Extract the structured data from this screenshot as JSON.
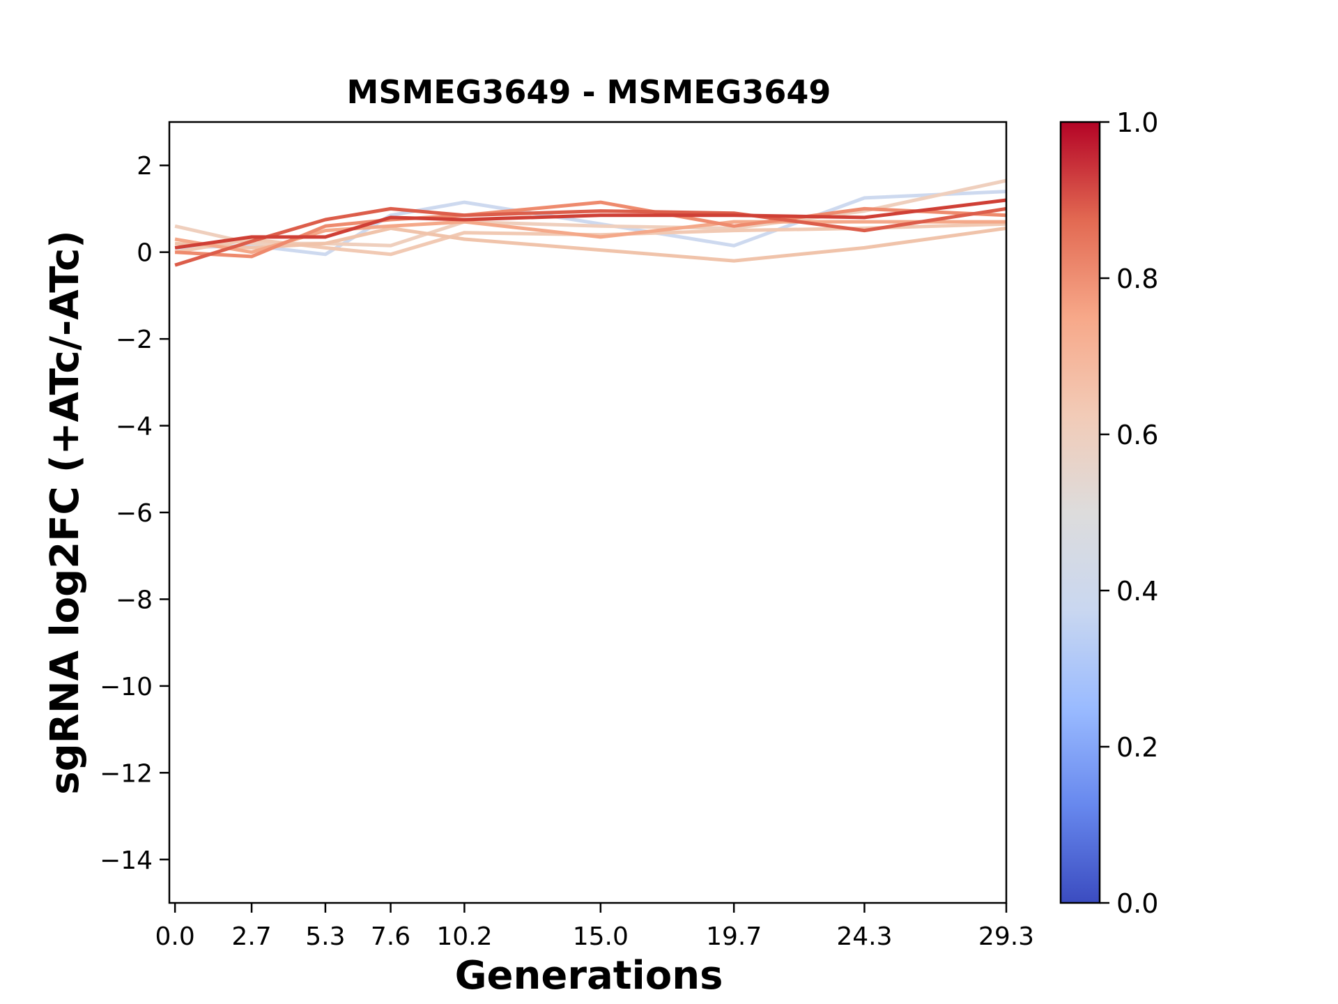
{
  "chart_data": {
    "type": "line",
    "title": "MSMEG3649 - MSMEG3649",
    "xlabel": "Generations",
    "ylabel": "sgRNA log2FC (+ATc/-ATc)",
    "x": [
      0.0,
      2.7,
      5.3,
      7.6,
      10.2,
      15.0,
      19.7,
      24.3,
      29.3
    ],
    "x_tick_labels": [
      "0.0",
      "2.7",
      "5.3",
      "7.6",
      "10.2",
      "15.0",
      "19.7",
      "24.3",
      "29.3"
    ],
    "xlim": [
      -0.2,
      29.3
    ],
    "ylim": [
      -15,
      3
    ],
    "y_ticks": [
      2,
      0,
      -2,
      -4,
      -6,
      -8,
      -10,
      -12,
      -14
    ],
    "y_tick_labels": [
      "2",
      "0",
      "−2",
      "−4",
      "−6",
      "−8",
      "−10",
      "−12",
      "−14"
    ],
    "grid": false,
    "colorbar": {
      "colormap": "coolwarm",
      "range": [
        0.0,
        1.0
      ],
      "ticks": [
        1.0,
        0.8,
        0.6,
        0.4,
        0.2,
        0.0
      ],
      "tick_labels": [
        "1.0",
        "0.8",
        "0.6",
        "0.4",
        "0.2",
        "0.0"
      ],
      "stops": [
        "#3b4cc0",
        "#6788ee",
        "#9abbff",
        "#c9d7f0",
        "#dddcdc",
        "#f2cbb7",
        "#f7a889",
        "#e26952",
        "#b40426"
      ]
    },
    "series": [
      {
        "color_value": 0.42,
        "color": "#cdd9ef",
        "values": [
          0.1,
          0.15,
          -0.05,
          0.85,
          1.15,
          0.65,
          0.15,
          1.25,
          1.4
        ]
      },
      {
        "color_value": 0.6,
        "color": "#efcfbd",
        "values": [
          0.6,
          0.2,
          0.2,
          0.15,
          0.7,
          0.6,
          0.55,
          0.95,
          1.65
        ]
      },
      {
        "color_value": 0.62,
        "color": "#f1c9b3",
        "values": [
          0.0,
          0.3,
          0.1,
          -0.05,
          0.45,
          0.4,
          0.5,
          0.55,
          0.65
        ]
      },
      {
        "color_value": 0.63,
        "color": "#f0c3aa",
        "values": [
          0.2,
          0.1,
          0.2,
          0.55,
          0.3,
          0.05,
          -0.2,
          0.1,
          0.55
        ]
      },
      {
        "color_value": 0.72,
        "color": "#f4a889",
        "values": [
          0.3,
          0.0,
          0.5,
          0.6,
          0.7,
          0.35,
          0.7,
          0.7,
          0.7
        ]
      },
      {
        "color_value": 0.8,
        "color": "#ee8a6d",
        "values": [
          0.0,
          -0.1,
          0.6,
          0.75,
          0.85,
          1.15,
          0.6,
          1.0,
          0.85
        ]
      },
      {
        "color_value": 0.88,
        "color": "#dc5d4a",
        "values": [
          -0.3,
          0.25,
          0.75,
          1.0,
          0.85,
          0.95,
          0.9,
          0.5,
          1.0
        ]
      },
      {
        "color_value": 0.92,
        "color": "#cf3f35",
        "values": [
          0.1,
          0.35,
          0.35,
          0.8,
          0.75,
          0.85,
          0.85,
          0.8,
          1.2
        ]
      }
    ]
  }
}
